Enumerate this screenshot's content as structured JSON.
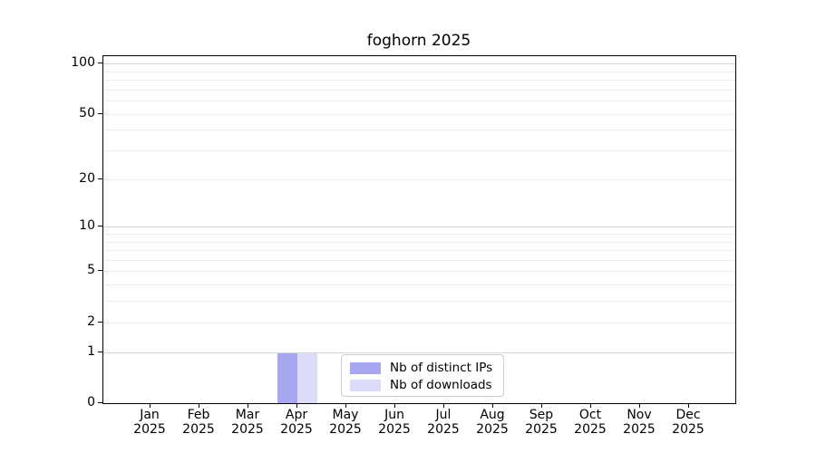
{
  "chart_data": {
    "type": "bar",
    "title": "foghorn 2025",
    "year": "2025",
    "categories": [
      "Jan",
      "Feb",
      "Mar",
      "Apr",
      "May",
      "Jun",
      "Jul",
      "Aug",
      "Sep",
      "Oct",
      "Nov",
      "Dec"
    ],
    "series": [
      {
        "name": "Nb of distinct IPs",
        "color": "#a6a6f1",
        "values": [
          0,
          0,
          0,
          1,
          0,
          0,
          0,
          0,
          0,
          0,
          0,
          0
        ]
      },
      {
        "name": "Nb of downloads",
        "color": "#dcdcfa",
        "values": [
          0,
          0,
          0,
          1,
          0,
          0,
          0,
          0,
          0,
          0,
          0,
          0
        ]
      }
    ],
    "yticks": [
      0,
      1,
      2,
      5,
      10,
      20,
      50,
      100
    ],
    "ylim": [
      0,
      112
    ],
    "yscale": "log1p",
    "xlabel": "",
    "ylabel": "",
    "grid": {
      "major_values": [
        1,
        10,
        100
      ],
      "minor_values": [
        2,
        3,
        4,
        5,
        6,
        7,
        8,
        9,
        20,
        30,
        40,
        50,
        60,
        70,
        80,
        90
      ],
      "major_color": "#d5d5d5",
      "minor_color": "#ececec"
    },
    "legend": {
      "position": "lower center"
    }
  }
}
